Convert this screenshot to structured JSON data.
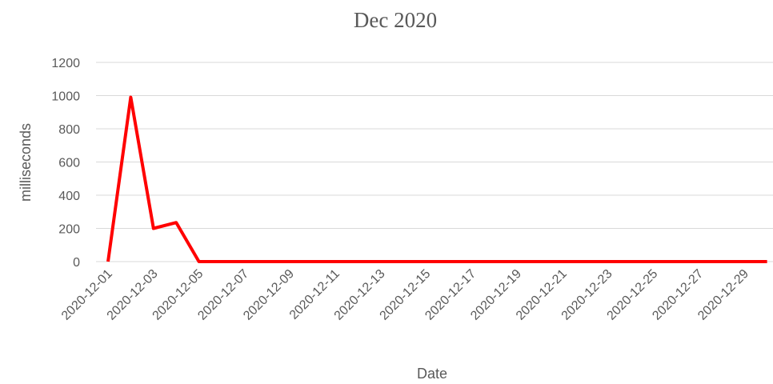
{
  "chart_data": {
    "type": "line",
    "title": "Dec 2020",
    "x_label": "Date",
    "y_label": "milliseconds",
    "categories": [
      "2020-12-01",
      null,
      "2020-12-03",
      null,
      "2020-12-05",
      null,
      "2020-12-07",
      null,
      "2020-12-09",
      null,
      "2020-12-11",
      null,
      "2020-12-13",
      null,
      "2020-12-15",
      null,
      "2020-12-17",
      null,
      "2020-12-19",
      null,
      "2020-12-21",
      null,
      "2020-12-23",
      null,
      "2020-12-25",
      null,
      "2020-12-27",
      null,
      "2020-12-29",
      null
    ],
    "series": [
      {
        "name": "milliseconds",
        "color": "#ff0000",
        "values": [
          0,
          990,
          200,
          235,
          0,
          0,
          0,
          0,
          0,
          0,
          0,
          0,
          0,
          0,
          0,
          0,
          0,
          0,
          0,
          0,
          0,
          0,
          0,
          0,
          0,
          0,
          0,
          0,
          0,
          0
        ]
      }
    ],
    "ylim": [
      0,
      1200
    ],
    "yticks": [
      0,
      200,
      400,
      600,
      800,
      1000,
      1200
    ],
    "grid": true
  }
}
